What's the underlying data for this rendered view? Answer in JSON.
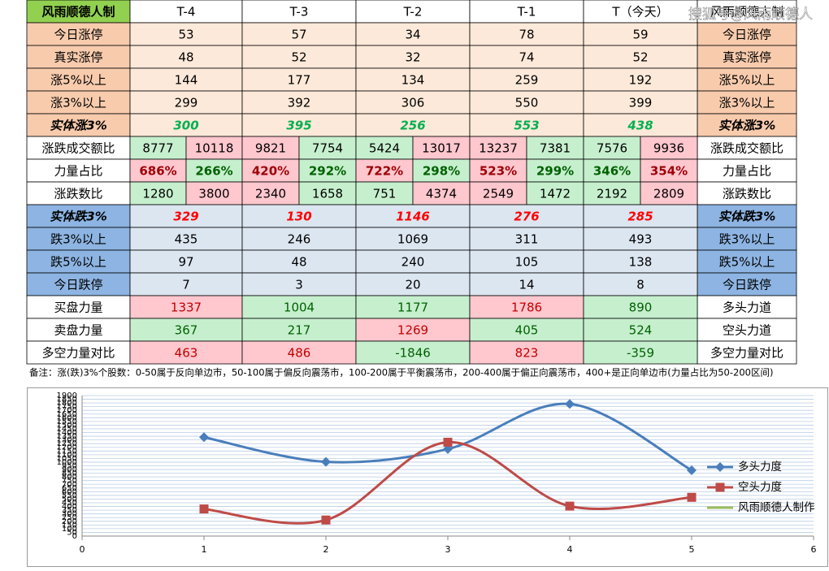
{
  "watermark": "搜狐号@风雨顺德人",
  "table": {
    "header": [
      "风雨顺德人制",
      "T-4",
      "T-3",
      "T-2",
      "T-1",
      "T（今天）",
      "风雨顺德人制"
    ],
    "rows": [
      {
        "label": "今日涨停",
        "values": [
          53,
          57,
          34,
          78,
          59
        ],
        "right": "今日涨停",
        "band": "up"
      },
      {
        "label": "真实涨停",
        "values": [
          48,
          52,
          32,
          74,
          52
        ],
        "right": "真实涨停",
        "band": "up"
      },
      {
        "label": "涨5%以上",
        "values": [
          144,
          177,
          134,
          259,
          192
        ],
        "right": "涨5%以上",
        "band": "up"
      },
      {
        "label": "涨3%以上",
        "values": [
          299,
          392,
          306,
          550,
          399
        ],
        "right": "涨3%以上",
        "band": "up"
      },
      {
        "label": "实体涨3%",
        "values": [
          300,
          395,
          256,
          553,
          438
        ],
        "right": "实体涨3%",
        "band": "up",
        "style": "rise"
      },
      {
        "label": "涨跌成交额比",
        "values": [
          8777,
          10118,
          9821,
          7754,
          5424,
          13017,
          13237,
          7381,
          7576,
          9936
        ],
        "right": "涨跌成交额比",
        "band": "flat",
        "split": true
      },
      {
        "label": "力量占比",
        "values": [
          686,
          266,
          420,
          292,
          722,
          298,
          523,
          299,
          346,
          354
        ],
        "value_labels": [
          "686%",
          "266%",
          "420%",
          "292%",
          "722%",
          "298%",
          "523%",
          "299%",
          "346%",
          "354%"
        ],
        "right": "力量占比",
        "band": "flat",
        "split": true
      },
      {
        "label": "涨跌数比",
        "values": [
          1280,
          3800,
          2340,
          1658,
          751,
          4374,
          2549,
          1472,
          2192,
          2809
        ],
        "right": "涨跌数比",
        "band": "flat",
        "split": true
      },
      {
        "label": "实体跌3%",
        "values": [
          329,
          130,
          1146,
          276,
          285
        ],
        "right": "实体跌3%",
        "band": "down",
        "style": "fall"
      },
      {
        "label": "跌3%以上",
        "values": [
          435,
          246,
          1069,
          311,
          493
        ],
        "right": "跌3%以上",
        "band": "down"
      },
      {
        "label": "跌5%以上",
        "values": [
          97,
          48,
          240,
          105,
          138
        ],
        "right": "跌5%以上",
        "band": "down"
      },
      {
        "label": "今日跌停",
        "values": [
          7,
          3,
          20,
          14,
          8
        ],
        "right": "今日跌停",
        "band": "down"
      },
      {
        "label": "买盘力量",
        "values": [
          1337,
          1004,
          1177,
          1786,
          890
        ],
        "right": "多头力道",
        "band": "flat",
        "tones": [
          "pink",
          "green",
          "green",
          "pink",
          "green"
        ]
      },
      {
        "label": "卖盘力量",
        "values": [
          367,
          217,
          1269,
          405,
          524
        ],
        "right": "空头力道",
        "band": "flat",
        "tones": [
          "green",
          "green",
          "pink",
          "green",
          "green"
        ]
      },
      {
        "label": "多空力量对比",
        "values": [
          463,
          486,
          -1846,
          823,
          -359
        ],
        "right": "多空力量对比",
        "band": "flat",
        "tones": [
          "pink",
          "pink",
          "green",
          "pink",
          "green"
        ]
      }
    ],
    "note": "备注：涨(跌)3%个股数：0-50属于反向单边市，50-100属于偏反向震荡市，100-200属于平衡震荡市，200-400属于偏正向震荡市，400+是正向单边市(力量占比为50-200区间)"
  },
  "chart_data": {
    "type": "line",
    "smooth": true,
    "grid": true,
    "legend": "right",
    "x": [
      1,
      2,
      3,
      4,
      5
    ],
    "series": [
      {
        "name": "多头力度",
        "color": "#4a7ebb",
        "marker": "diamond",
        "values": [
          1337,
          1004,
          1177,
          1786,
          890
        ]
      },
      {
        "name": "空头力度",
        "color": "#be4b48",
        "marker": "square",
        "values": [
          367,
          217,
          1269,
          405,
          524
        ]
      },
      {
        "name": "风雨顺德人制作",
        "color": "#9bbb59",
        "marker": "none",
        "values": [
          null,
          null,
          null,
          null,
          null
        ]
      }
    ],
    "xlim": [
      0,
      6
    ],
    "xticks": [
      0,
      1,
      2,
      3,
      4,
      5,
      6
    ],
    "ylim": [
      0,
      1900
    ],
    "yticks": [
      0,
      50,
      100,
      150,
      200,
      250,
      300,
      350,
      400,
      450,
      500,
      550,
      600,
      650,
      700,
      750,
      800,
      850,
      900,
      950,
      1000,
      1050,
      1100,
      1150,
      1200,
      1250,
      1300,
      1350,
      1400,
      1450,
      1500,
      1550,
      1600,
      1650,
      1700,
      1750,
      1800,
      1850,
      1900
    ]
  }
}
